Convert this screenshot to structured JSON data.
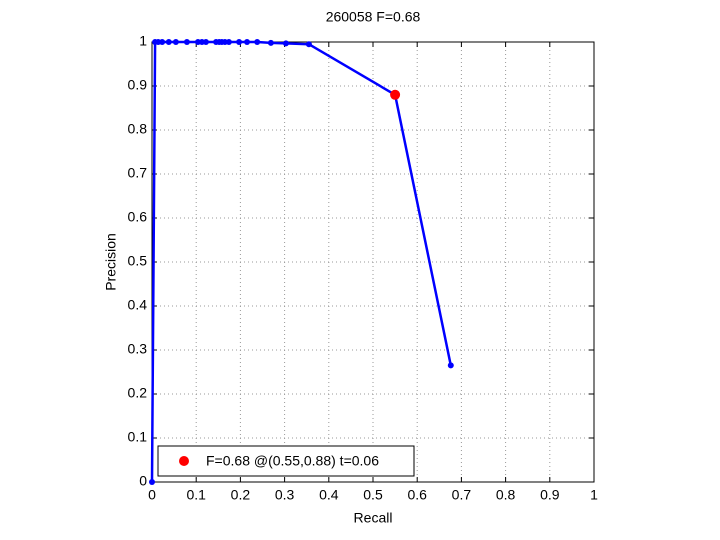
{
  "chart_data": {
    "type": "line",
    "title": "260058 F=0.68",
    "x_label": "Recall",
    "y_label": "Precision",
    "xlim": [
      0,
      1
    ],
    "ylim": [
      0,
      1
    ],
    "xticks": [
      0,
      0.1,
      0.2,
      0.3,
      0.4,
      0.5,
      0.6,
      0.7,
      0.8,
      0.9,
      1
    ],
    "yticks": [
      0,
      0.1,
      0.2,
      0.3,
      0.4,
      0.5,
      0.6,
      0.7,
      0.8,
      0.9,
      1
    ],
    "grid": true,
    "legend": "lower left",
    "series": [
      {
        "color": "#0000ff",
        "x": [
          0,
          0.007,
          0.014,
          0.023,
          0.038,
          0.054,
          0.079,
          0.104,
          0.113,
          0.122,
          0.145,
          0.152,
          0.158,
          0.165,
          0.174,
          0.197,
          0.215,
          0.238,
          0.269,
          0.303,
          0.355,
          0.55,
          0.676
        ],
        "values": [
          0,
          1,
          1,
          1,
          1,
          1,
          1,
          1,
          1,
          1,
          1,
          1,
          1,
          1,
          1,
          1,
          1,
          1,
          0.998,
          0.997,
          0.995,
          0.88,
          0.265
        ]
      },
      {
        "name": "F=0.68 @(0.55,0.88) t=0.06",
        "color": "#ff0000",
        "x": [
          0.55
        ],
        "values": [
          0.88
        ]
      }
    ]
  }
}
